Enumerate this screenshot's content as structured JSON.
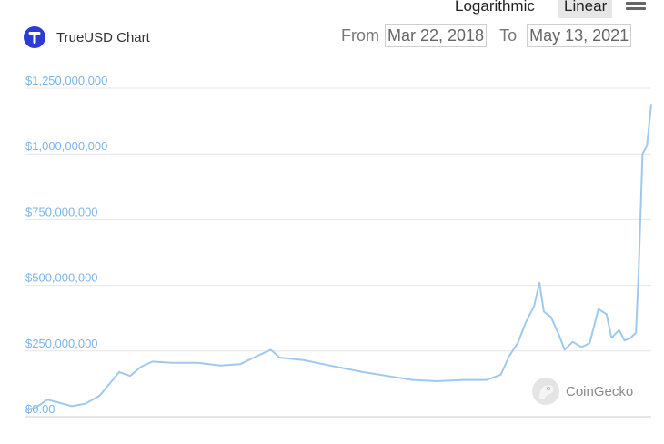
{
  "scale_toggle": {
    "log_label": "Logarithmic",
    "linear_label": "Linear",
    "selected": "Linear"
  },
  "header": {
    "title": "TrueUSD Chart"
  },
  "range": {
    "from_label": "From",
    "from_value": "Mar 22, 2018",
    "to_label": "To",
    "to_value": "May 13, 2021"
  },
  "watermark": {
    "text": "CoinGecko"
  },
  "colors": {
    "line": "#9fc9ef",
    "axis_label": "#7cb5ec",
    "grid": "#e6e6e6",
    "brand": "#2b3bd6"
  },
  "chart_data": {
    "type": "line",
    "title": "TrueUSD Chart",
    "xlabel": "",
    "ylabel": "",
    "grid": true,
    "ylim": [
      0,
      1250000000
    ],
    "xlim": [
      "2018-03-22",
      "2021-05-13"
    ],
    "y_ticks": [
      0,
      250000000,
      500000000,
      750000000,
      1000000000,
      1250000000
    ],
    "y_tick_labels": [
      "$0.00",
      "$250,000,000",
      "$500,000,000",
      "$750,000,000",
      "$1,000,000,000",
      "$1,250,000,000"
    ],
    "series": [
      {
        "values": [
          [
            "2018-03-22",
            25000000
          ],
          [
            "2018-04-10",
            35000000
          ],
          [
            "2018-05-01",
            65000000
          ],
          [
            "2018-05-20",
            55000000
          ],
          [
            "2018-06-15",
            40000000
          ],
          [
            "2018-07-10",
            50000000
          ],
          [
            "2018-08-05",
            80000000
          ],
          [
            "2018-08-25",
            130000000
          ],
          [
            "2018-09-10",
            170000000
          ],
          [
            "2018-09-30",
            155000000
          ],
          [
            "2018-10-20",
            190000000
          ],
          [
            "2018-11-10",
            210000000
          ],
          [
            "2018-12-15",
            205000000
          ],
          [
            "2019-02-01",
            205000000
          ],
          [
            "2019-03-15",
            195000000
          ],
          [
            "2019-04-20",
            200000000
          ],
          [
            "2019-05-20",
            230000000
          ],
          [
            "2019-06-15",
            255000000
          ],
          [
            "2019-07-01",
            225000000
          ],
          [
            "2019-08-15",
            215000000
          ],
          [
            "2019-10-01",
            195000000
          ],
          [
            "2019-12-01",
            170000000
          ],
          [
            "2020-01-15",
            155000000
          ],
          [
            "2020-03-01",
            140000000
          ],
          [
            "2020-04-15",
            135000000
          ],
          [
            "2020-06-01",
            140000000
          ],
          [
            "2020-07-15",
            140000000
          ],
          [
            "2020-08-10",
            160000000
          ],
          [
            "2020-08-25",
            230000000
          ],
          [
            "2020-09-10",
            280000000
          ],
          [
            "2020-09-25",
            360000000
          ],
          [
            "2020-10-10",
            420000000
          ],
          [
            "2020-10-20",
            510000000
          ],
          [
            "2020-10-28",
            400000000
          ],
          [
            "2020-11-10",
            380000000
          ],
          [
            "2020-11-25",
            310000000
          ],
          [
            "2020-12-05",
            255000000
          ],
          [
            "2020-12-20",
            285000000
          ],
          [
            "2021-01-05",
            265000000
          ],
          [
            "2021-01-20",
            280000000
          ],
          [
            "2021-02-05",
            410000000
          ],
          [
            "2021-02-20",
            390000000
          ],
          [
            "2021-03-01",
            300000000
          ],
          [
            "2021-03-15",
            330000000
          ],
          [
            "2021-03-25",
            290000000
          ],
          [
            "2021-04-05",
            300000000
          ],
          [
            "2021-04-15",
            320000000
          ],
          [
            "2021-04-20",
            560000000
          ],
          [
            "2021-04-27",
            1000000000
          ],
          [
            "2021-05-05",
            1030000000
          ],
          [
            "2021-05-13",
            1190000000
          ]
        ]
      }
    ]
  }
}
